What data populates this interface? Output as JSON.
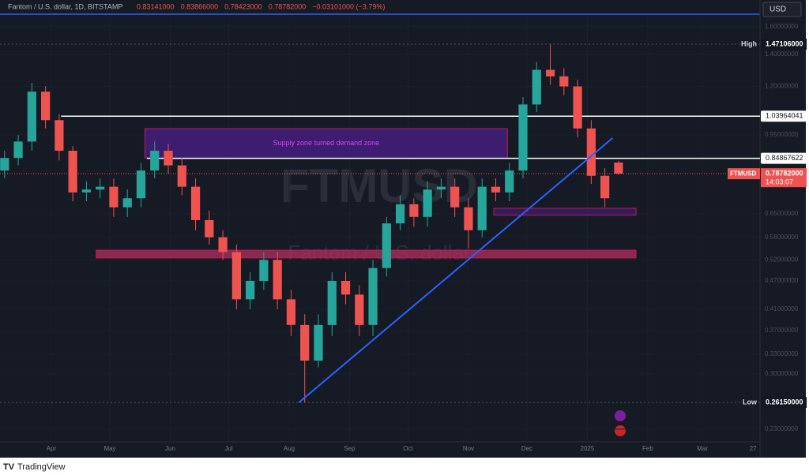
{
  "chart_data": {
    "type": "candlestick",
    "title": "Fantom / U.S. dollar, 1D, BITSTAMP",
    "header_values": [
      "0.83141000",
      "0.83866000",
      "0.78423000",
      "0.78782000",
      "−0.03101000 (−3.79%)"
    ],
    "currency": "USD",
    "watermark": "FTMUSD",
    "watermark_subtitle": "Fantom / U.S. dollar",
    "up_color": "#26a69a",
    "down_color": "#ef5350",
    "log_y": true,
    "x": [
      -24,
      -17,
      -10,
      -3,
      4,
      11,
      18,
      25,
      32,
      39,
      46,
      53,
      60,
      67,
      74,
      81,
      88,
      95,
      102,
      109,
      116,
      123,
      130,
      137,
      144,
      151,
      158,
      165,
      172,
      179,
      186,
      193,
      200,
      207,
      214,
      221,
      228,
      235,
      242,
      249,
      256,
      263,
      270,
      277,
      284,
      291
    ],
    "open": [
      0.8,
      0.85,
      0.92,
      1.17,
      1.02,
      0.88,
      0.72,
      0.73,
      0.74,
      0.67,
      0.7,
      0.8,
      0.88,
      0.82,
      0.74,
      0.63,
      0.58,
      0.54,
      0.43,
      0.47,
      0.52,
      0.43,
      0.38,
      0.32,
      0.38,
      0.47,
      0.44,
      0.38,
      0.5,
      0.62,
      0.68,
      0.64,
      0.73,
      0.74,
      0.67,
      0.6,
      0.74,
      0.72,
      0.8,
      1.1,
      1.3,
      1.26,
      1.2,
      0.98,
      0.78,
      0.83141
    ],
    "high": [
      0.88,
      0.95,
      1.22,
      1.2,
      1.05,
      0.9,
      0.76,
      0.77,
      0.77,
      0.73,
      0.83,
      0.92,
      0.91,
      0.85,
      0.77,
      0.66,
      0.6,
      0.56,
      0.49,
      0.54,
      0.54,
      0.45,
      0.4,
      0.4,
      0.49,
      0.49,
      0.46,
      0.52,
      0.64,
      0.71,
      0.7,
      0.76,
      0.77,
      0.77,
      0.7,
      0.77,
      0.77,
      0.83,
      1.14,
      1.35,
      1.47106,
      1.31,
      1.24,
      1.02,
      0.81,
      0.83866
    ],
    "low": [
      0.77,
      0.82,
      0.88,
      0.98,
      0.84,
      0.69,
      0.69,
      0.7,
      0.64,
      0.64,
      0.67,
      0.77,
      0.79,
      0.71,
      0.6,
      0.56,
      0.52,
      0.41,
      0.41,
      0.45,
      0.41,
      0.36,
      0.2615,
      0.31,
      0.36,
      0.42,
      0.36,
      0.36,
      0.48,
      0.6,
      0.61,
      0.61,
      0.7,
      0.64,
      0.55,
      0.58,
      0.69,
      0.69,
      0.77,
      1.06,
      1.21,
      1.15,
      0.94,
      0.75,
      0.67,
      0.78423
    ],
    "close": [
      0.85,
      0.92,
      1.17,
      1.02,
      0.88,
      0.72,
      0.73,
      0.74,
      0.67,
      0.7,
      0.8,
      0.88,
      0.82,
      0.74,
      0.63,
      0.58,
      0.54,
      0.43,
      0.47,
      0.52,
      0.43,
      0.38,
      0.32,
      0.38,
      0.47,
      0.44,
      0.38,
      0.5,
      0.62,
      0.68,
      0.64,
      0.73,
      0.74,
      0.67,
      0.6,
      0.74,
      0.72,
      0.8,
      1.1,
      1.3,
      1.26,
      1.2,
      0.98,
      0.78,
      0.7,
      0.78782
    ],
    "xlim": [
      -26.35,
      363.6
    ],
    "xticks": [
      {
        "value": 0,
        "label": "Apr"
      },
      {
        "value": 30,
        "label": "May"
      },
      {
        "value": 61,
        "label": "Jun"
      },
      {
        "value": 91,
        "label": "Jul"
      },
      {
        "value": 122,
        "label": "Aug"
      },
      {
        "value": 153,
        "label": "Sep"
      },
      {
        "value": 183,
        "label": "Oct"
      },
      {
        "value": 214,
        "label": "Nov"
      },
      {
        "value": 244,
        "label": "Dec"
      },
      {
        "value": 275,
        "label": "2025"
      },
      {
        "value": 306,
        "label": "Feb"
      },
      {
        "value": 334,
        "label": "Mar"
      },
      {
        "value": 360,
        "label": "27"
      }
    ],
    "ylim": [
      0.202,
      1.674
    ],
    "yticks": [
      {
        "value": 1.6,
        "label": "1.60000000"
      },
      {
        "value": 1.4,
        "label": "1.40000000"
      },
      {
        "value": 1.2,
        "label": "1.20000000"
      },
      {
        "value": 0.95,
        "label": "0.95000000"
      },
      {
        "value": 0.65,
        "label": "0.65000000"
      },
      {
        "value": 0.58,
        "label": "0.58000000"
      },
      {
        "value": 0.52,
        "label": "0.52000000"
      },
      {
        "value": 0.47,
        "label": "0.47000000"
      },
      {
        "value": 0.41,
        "label": "0.41000000"
      },
      {
        "value": 0.37,
        "label": "0.37000000"
      },
      {
        "value": 0.33,
        "label": "0.33000000"
      },
      {
        "value": 0.3,
        "label": "0.30000000"
      },
      {
        "value": 0.23,
        "label": "0.23000000"
      }
    ],
    "high_line": {
      "name": "High",
      "value": 1.47106,
      "label": "1.47106000"
    },
    "low_line": {
      "name": "Low",
      "value": 0.2615,
      "label": "0.26150000"
    },
    "levels": [
      {
        "value": 1.03964041,
        "label": "1.03964041",
        "x0": 5
      },
      {
        "value": 0.84867622,
        "label": "0.84867622",
        "x0": 49
      }
    ],
    "last_price": {
      "symbol": "FTMUSD",
      "value": 0.78782,
      "label": "0.78782000",
      "countdown": "14:03:07"
    },
    "zones": [
      {
        "label": "Supply zone turned demand zone",
        "x": [
          48,
          234
        ],
        "y": [
          0.849,
          0.979
        ],
        "color": "#4a1f8a"
      },
      {
        "x": [
          23,
          300
        ],
        "y": [
          0.525,
          0.545
        ],
        "color": "#b0305f"
      },
      {
        "x": [
          227,
          300
        ],
        "y": [
          0.645,
          0.667
        ],
        "color": "#3f1d6b"
      }
    ],
    "trend_line": {
      "x": [
        127,
        288
      ],
      "y": [
        0.2615,
        0.936
      ],
      "color": "#2962ff"
    }
  },
  "footer": "TradingView"
}
